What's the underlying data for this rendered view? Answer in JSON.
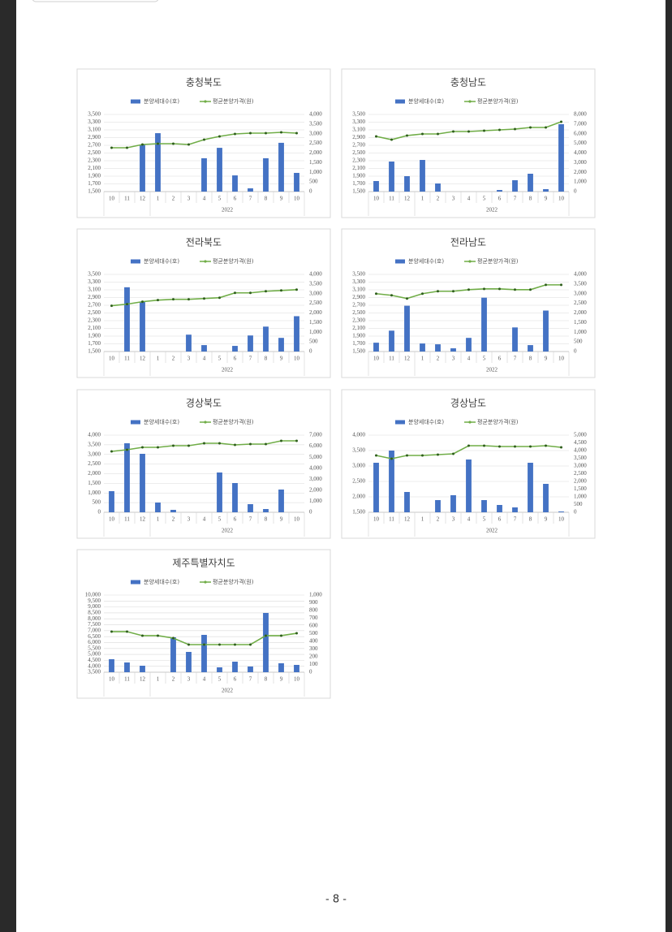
{
  "chart_data": [
    {
      "type": "bar-line",
      "title": "충청북도",
      "x_group_label": "2022",
      "categories": [
        "10",
        "11",
        "12",
        "1",
        "2",
        "3",
        "4",
        "5",
        "6",
        "7",
        "8",
        "9",
        "10"
      ],
      "series": [
        {
          "name": "분양세대수(호)",
          "type": "bar",
          "color": "#4472c4",
          "axis": "y2",
          "values": [
            null,
            null,
            2440,
            3030,
            null,
            null,
            1730,
            2270,
            840,
            170,
            1730,
            2530,
            970
          ]
        },
        {
          "name": "평균분양가격(원)",
          "type": "line",
          "color": "#70ad47",
          "values": [
            2637,
            2637,
            2721,
            2742,
            2742,
            2721,
            2847,
            2932,
            2995,
            3016,
            3016,
            3037,
            3016
          ]
        }
      ],
      "ylim": [
        1500,
        3500
      ],
      "yticks": [
        {
          "value": 1500,
          "label": "1,500"
        },
        {
          "value": 1700,
          "label": "1,700"
        },
        {
          "value": 1900,
          "label": "1,900"
        },
        {
          "value": 2100,
          "label": "2,100"
        },
        {
          "value": 2300,
          "label": "2,300"
        },
        {
          "value": 2500,
          "label": "2,500"
        },
        {
          "value": 2700,
          "label": "2,700"
        },
        {
          "value": 2900,
          "label": "2,900"
        },
        {
          "value": 3100,
          "label": "3,100"
        },
        {
          "value": 3300,
          "label": "3,300"
        },
        {
          "value": 3500,
          "label": "3,500"
        }
      ],
      "y2lim": [
        0,
        4000
      ],
      "y2ticks": [
        0,
        500,
        {
          "value": 1000,
          "label": "1,000"
        },
        {
          "value": 1500,
          "label": "1,500"
        },
        {
          "value": 2000,
          "label": "2,000"
        },
        {
          "value": 2500,
          "label": "2,500"
        },
        {
          "value": 3000,
          "label": "3,000"
        },
        {
          "value": 3500,
          "label": "3,500"
        },
        {
          "value": 4000,
          "label": "4,000"
        }
      ],
      "grid": true
    },
    {
      "type": "bar-line",
      "title": "충청남도",
      "x_group_label": "2022",
      "categories": [
        "10",
        "11",
        "12",
        "1",
        "2",
        "3",
        "4",
        "5",
        "6",
        "7",
        "8",
        "9",
        "10"
      ],
      "series": [
        {
          "name": "분양세대수(호)",
          "type": "bar",
          "color": "#4472c4",
          "axis": "y2",
          "values": [
            1095,
            3116,
            1600,
            3284,
            842,
            null,
            null,
            null,
            168,
            1179,
            1853,
            253,
            6989
          ]
        },
        {
          "name": "평균분양가격(원)",
          "type": "line",
          "color": "#70ad47",
          "values": [
            2932,
            2847,
            2953,
            2995,
            2995,
            3058,
            3058,
            3079,
            3100,
            3121,
            3163,
            3163,
            3311
          ]
        }
      ],
      "ylim": [
        1500,
        3500
      ],
      "yticks": [
        {
          "value": 1500,
          "label": "1,500"
        },
        {
          "value": 1700,
          "label": "1,700"
        },
        {
          "value": 1900,
          "label": "1,900"
        },
        {
          "value": 2100,
          "label": "2,100"
        },
        {
          "value": 2300,
          "label": "2,300"
        },
        {
          "value": 2500,
          "label": "2,500"
        },
        {
          "value": 2700,
          "label": "2,700"
        },
        {
          "value": 2900,
          "label": "2,900"
        },
        {
          "value": 3100,
          "label": "3,100"
        },
        {
          "value": 3300,
          "label": "3,300"
        },
        {
          "value": 3500,
          "label": "3,500"
        }
      ],
      "y2lim": [
        0,
        8000
      ],
      "y2ticks": [
        0,
        {
          "value": 1000,
          "label": "1,000"
        },
        {
          "value": 2000,
          "label": "2,000"
        },
        {
          "value": 3000,
          "label": "3,000"
        },
        {
          "value": 4000,
          "label": "4,000"
        },
        {
          "value": 5000,
          "label": "5,000"
        },
        {
          "value": 6000,
          "label": "6,000"
        },
        {
          "value": 7000,
          "label": "7,000"
        },
        {
          "value": 8000,
          "label": "8,000"
        }
      ],
      "grid": true
    },
    {
      "type": "bar-line",
      "title": "전라북도",
      "x_group_label": "2022",
      "categories": [
        "10",
        "11",
        "12",
        "1",
        "2",
        "3",
        "4",
        "5",
        "6",
        "7",
        "8",
        "9",
        "10"
      ],
      "series": [
        {
          "name": "분양세대수(호)",
          "type": "bar",
          "color": "#4472c4",
          "axis": "y2",
          "values": [
            null,
            3333,
            2583,
            null,
            null,
            875,
            333,
            null,
            292,
            833,
            1292,
            708,
            1833
          ]
        },
        {
          "name": "평균분양가격(원)",
          "type": "line",
          "color": "#70ad47",
          "values": [
            2688,
            2729,
            2792,
            2833,
            2854,
            2854,
            2875,
            2896,
            3021,
            3021,
            3063,
            3083,
            3104
          ]
        }
      ],
      "ylim": [
        1500,
        3500
      ],
      "yticks": [
        {
          "value": 1500,
          "label": "1,500"
        },
        {
          "value": 1700,
          "label": "1,700"
        },
        {
          "value": 1900,
          "label": "1,900"
        },
        {
          "value": 2100,
          "label": "2,100"
        },
        {
          "value": 2300,
          "label": "2,300"
        },
        {
          "value": 2500,
          "label": "2,500"
        },
        {
          "value": 2700,
          "label": "2,700"
        },
        {
          "value": 2900,
          "label": "2,900"
        },
        {
          "value": 3100,
          "label": "3,100"
        },
        {
          "value": 3300,
          "label": "3,300"
        },
        {
          "value": 3500,
          "label": "3,500"
        }
      ],
      "y2lim": [
        0,
        4000
      ],
      "y2ticks": [
        0,
        500,
        {
          "value": 1000,
          "label": "1,000"
        },
        {
          "value": 1500,
          "label": "1,500"
        },
        {
          "value": 2000,
          "label": "2,000"
        },
        {
          "value": 2500,
          "label": "2,500"
        },
        {
          "value": 3000,
          "label": "3,000"
        },
        {
          "value": 3500,
          "label": "3,500"
        },
        {
          "value": 4000,
          "label": "4,000"
        }
      ],
      "grid": true
    },
    {
      "type": "bar-line",
      "title": "전라남도",
      "x_group_label": "2022",
      "categories": [
        "10",
        "11",
        "12",
        "1",
        "2",
        "3",
        "4",
        "5",
        "6",
        "7",
        "8",
        "9",
        "10"
      ],
      "series": [
        {
          "name": "분양세대수(호)",
          "type": "bar",
          "color": "#4472c4",
          "axis": "y2",
          "values": [
            458,
            1083,
            2375,
            417,
            375,
            167,
            708,
            2792,
            null,
            1250,
            333,
            2125,
            null
          ]
        },
        {
          "name": "평균분양가격(원)",
          "type": "line",
          "color": "#70ad47",
          "values": [
            3000,
            2958,
            2875,
            3000,
            3063,
            3063,
            3104,
            3125,
            3125,
            3104,
            3104,
            3229,
            3229
          ]
        }
      ],
      "ylim": [
        1500,
        3500
      ],
      "yticks": [
        {
          "value": 1500,
          "label": "1,500"
        },
        {
          "value": 1700,
          "label": "1,700"
        },
        {
          "value": 1900,
          "label": "1,900"
        },
        {
          "value": 2100,
          "label": "2,100"
        },
        {
          "value": 2300,
          "label": "2,300"
        },
        {
          "value": 2500,
          "label": "2,500"
        },
        {
          "value": 2700,
          "label": "2,700"
        },
        {
          "value": 2900,
          "label": "2,900"
        },
        {
          "value": 3100,
          "label": "3,100"
        },
        {
          "value": 3300,
          "label": "3,300"
        },
        {
          "value": 3500,
          "label": "3,500"
        }
      ],
      "y2lim": [
        0,
        4000
      ],
      "y2ticks": [
        0,
        500,
        {
          "value": 1000,
          "label": "1,000"
        },
        {
          "value": 1500,
          "label": "1,500"
        },
        {
          "value": 2000,
          "label": "2,000"
        },
        {
          "value": 2500,
          "label": "2,500"
        },
        {
          "value": 3000,
          "label": "3,000"
        },
        {
          "value": 3500,
          "label": "3,500"
        },
        {
          "value": 4000,
          "label": "4,000"
        }
      ],
      "grid": true
    },
    {
      "type": "bar-line",
      "title": "경상북도",
      "x_group_label": "2022",
      "categories": [
        "10",
        "11",
        "12",
        "1",
        "2",
        "3",
        "4",
        "5",
        "6",
        "7",
        "8",
        "9",
        "10"
      ],
      "series": [
        {
          "name": "분양세대수(호)",
          "type": "bar",
          "color": "#4472c4",
          "values": [
            1095,
            3579,
            3032,
            505,
            126,
            null,
            null,
            2063,
            1516,
            421,
            168,
            1179,
            null
          ]
        },
        {
          "name": "평균분양가격(원)",
          "type": "line",
          "color": "#70ad47",
          "axis": "y2",
          "values": [
            5526,
            5674,
            5895,
            5895,
            6042,
            6042,
            6263,
            6263,
            6116,
            6189,
            6189,
            6484,
            6484
          ]
        }
      ],
      "ylim": [
        0,
        4000
      ],
      "yticks": [
        0,
        500,
        {
          "value": 1000,
          "label": "1,000"
        },
        {
          "value": 1500,
          "label": "1,500"
        },
        {
          "value": 2000,
          "label": "2,000"
        },
        {
          "value": 2500,
          "label": "2,500"
        },
        {
          "value": 3000,
          "label": "3,000"
        },
        {
          "value": 3500,
          "label": "3,500"
        },
        {
          "value": 4000,
          "label": "4,000"
        }
      ],
      "y2lim": [
        0,
        7000
      ],
      "y2ticks": [
        0,
        {
          "value": 1000,
          "label": "1,000"
        },
        {
          "value": 2000,
          "label": "2,000"
        },
        {
          "value": 3000,
          "label": "3,000"
        },
        {
          "value": 4000,
          "label": "4,000"
        },
        {
          "value": 5000,
          "label": "5,000"
        },
        {
          "value": 6000,
          "label": "6,000"
        },
        {
          "value": 7000,
          "label": "7,000"
        }
      ],
      "grid": true
    },
    {
      "type": "bar-line",
      "title": "경상남도",
      "x_group_label": "2022",
      "categories": [
        "10",
        "11",
        "12",
        "1",
        "2",
        "3",
        "4",
        "5",
        "6",
        "7",
        "8",
        "9",
        "10"
      ],
      "series": [
        {
          "name": "분양세대수(호)",
          "type": "bar",
          "color": "#4472c4",
          "values": [
            3105,
            3500,
            2158,
            null,
            1895,
            2053,
            3211,
            1895,
            1737,
            1658,
            3105,
            2421,
            1526
          ]
        },
        {
          "name": "평균분양가격(원)",
          "type": "line",
          "color": "#70ad47",
          "axis": "y2",
          "values": [
            3684,
            3474,
            3684,
            3684,
            3737,
            3789,
            4316,
            4316,
            4263,
            4263,
            4263,
            4316,
            4211
          ]
        }
      ],
      "ylim": [
        1500,
        4000
      ],
      "yticks": [
        {
          "value": 1500,
          "label": "1,500"
        },
        {
          "value": 2000,
          "label": "2,000"
        },
        {
          "value": 2500,
          "label": "2,500"
        },
        {
          "value": 3000,
          "label": "3,000"
        },
        {
          "value": 3500,
          "label": "3,500"
        },
        {
          "value": 4000,
          "label": "4,000"
        }
      ],
      "y2lim": [
        0,
        5000
      ],
      "y2ticks": [
        0,
        500,
        {
          "value": 1000,
          "label": "1,000"
        },
        {
          "value": 1500,
          "label": "1,500"
        },
        {
          "value": 2000,
          "label": "2,000"
        },
        {
          "value": 2500,
          "label": "2,500"
        },
        {
          "value": 3000,
          "label": "3,000"
        },
        {
          "value": 3500,
          "label": "3,500"
        },
        {
          "value": 4000,
          "label": "4,000"
        },
        {
          "value": 4500,
          "label": "4,500"
        },
        {
          "value": 5000,
          "label": "5,000"
        }
      ],
      "grid": true
    },
    {
      "type": "bar-line",
      "title": "제주특별자치도",
      "x_group_label": "2022",
      "categories": [
        "10",
        "11",
        "12",
        "1",
        "2",
        "3",
        "4",
        "5",
        "6",
        "7",
        "8",
        "9",
        "10"
      ],
      "series": [
        {
          "name": "분양세대수(호)",
          "type": "bar",
          "color": "#4472c4",
          "values": [
            4595,
            4321,
            4047,
            null,
            6442,
            5211,
            6647,
            3911,
            4389,
            3979,
            8495,
            4253,
            4116
          ]
        },
        {
          "name": "평균분양가격(원)",
          "type": "line",
          "color": "#70ad47",
          "axis": "y2",
          "values": [
            526,
            526,
            474,
            474,
            442,
            358,
            358,
            358,
            358,
            358,
            474,
            474,
            505
          ]
        }
      ],
      "ylim": [
        3500,
        10000
      ],
      "yticks": [
        {
          "value": 3500,
          "label": "3,500"
        },
        {
          "value": 4000,
          "label": "4,000"
        },
        {
          "value": 4500,
          "label": "4,500"
        },
        {
          "value": 5000,
          "label": "5,000"
        },
        {
          "value": 5500,
          "label": "5,500"
        },
        {
          "value": 6000,
          "label": "6,000"
        },
        {
          "value": 6500,
          "label": "6,500"
        },
        {
          "value": 7000,
          "label": "7,000"
        },
        {
          "value": 7500,
          "label": "7,500"
        },
        {
          "value": 8000,
          "label": "8,000"
        },
        {
          "value": 8500,
          "label": "8,500"
        },
        {
          "value": 9000,
          "label": "9,000"
        },
        {
          "value": 9500,
          "label": "9,500"
        },
        {
          "value": 10000,
          "label": "10,000"
        }
      ],
      "y2lim": [
        0,
        1000
      ],
      "y2ticks": [
        0,
        100,
        200,
        300,
        400,
        500,
        600,
        700,
        800,
        900,
        {
          "value": 1000,
          "label": "1,000"
        }
      ],
      "grid": true
    }
  ],
  "footer": {
    "page_number": "- 8 -"
  }
}
